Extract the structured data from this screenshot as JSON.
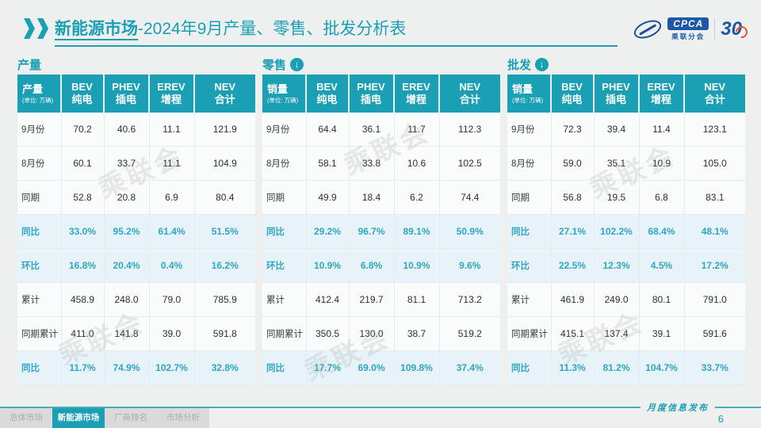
{
  "header": {
    "title_strong": "新能源市场",
    "title_rest": "-2024年9月产量、零售、批发分析表",
    "logo": {
      "cpca": "CPCA",
      "org": "乘联分会",
      "anniversary": "30"
    }
  },
  "watermark": "乘联会",
  "column_widths": [
    "18.5%",
    "18%",
    "19%",
    "19%",
    "25.5%"
  ],
  "tables": [
    {
      "section_title": "产量",
      "arrow": false,
      "corner_label": "产量",
      "corner_unit": "(单位: 万辆)",
      "columns": [
        [
          "BEV",
          "纯电"
        ],
        [
          "PHEV",
          "插电"
        ],
        [
          "EREV",
          "增程"
        ],
        [
          "NEV",
          "合计"
        ]
      ],
      "rows": [
        {
          "label": "9月份",
          "values": [
            "70.2",
            "40.6",
            "11.1",
            "121.9"
          ],
          "highlight": false
        },
        {
          "label": "8月份",
          "values": [
            "60.1",
            "33.7",
            "11.1",
            "104.9"
          ],
          "highlight": false
        },
        {
          "label": "同期",
          "values": [
            "52.8",
            "20.8",
            "6.9",
            "80.4"
          ],
          "highlight": false
        },
        {
          "label": "同比",
          "values": [
            "33.0%",
            "95.2%",
            "61.4%",
            "51.5%"
          ],
          "highlight": true
        },
        {
          "label": "环比",
          "values": [
            "16.8%",
            "20.4%",
            "0.4%",
            "16.2%"
          ],
          "highlight": true
        },
        {
          "label": "累计",
          "values": [
            "458.9",
            "248.0",
            "79.0",
            "785.9"
          ],
          "highlight": false
        },
        {
          "label": "同期累计",
          "values": [
            "411.0",
            "141.8",
            "39.0",
            "591.8"
          ],
          "highlight": false
        },
        {
          "label": "同比",
          "values": [
            "11.7%",
            "74.9%",
            "102.7%",
            "32.8%"
          ],
          "highlight": true
        }
      ]
    },
    {
      "section_title": "零售",
      "arrow": true,
      "corner_label": "销量",
      "corner_unit": "(单位: 万辆)",
      "columns": [
        [
          "BEV",
          "纯电"
        ],
        [
          "PHEV",
          "插电"
        ],
        [
          "EREV",
          "增程"
        ],
        [
          "NEV",
          "合计"
        ]
      ],
      "rows": [
        {
          "label": "9月份",
          "values": [
            "64.4",
            "36.1",
            "11.7",
            "112.3"
          ],
          "highlight": false
        },
        {
          "label": "8月份",
          "values": [
            "58.1",
            "33.8",
            "10.6",
            "102.5"
          ],
          "highlight": false
        },
        {
          "label": "同期",
          "values": [
            "49.9",
            "18.4",
            "6.2",
            "74.4"
          ],
          "highlight": false
        },
        {
          "label": "同比",
          "values": [
            "29.2%",
            "96.7%",
            "89.1%",
            "50.9%"
          ],
          "highlight": true
        },
        {
          "label": "环比",
          "values": [
            "10.9%",
            "6.8%",
            "10.9%",
            "9.6%"
          ],
          "highlight": true
        },
        {
          "label": "累计",
          "values": [
            "412.4",
            "219.7",
            "81.1",
            "713.2"
          ],
          "highlight": false
        },
        {
          "label": "同期累计",
          "values": [
            "350.5",
            "130.0",
            "38.7",
            "519.2"
          ],
          "highlight": false
        },
        {
          "label": "同比",
          "values": [
            "17.7%",
            "69.0%",
            "109.8%",
            "37.4%"
          ],
          "highlight": true
        }
      ]
    },
    {
      "section_title": "批发",
      "arrow": true,
      "corner_label": "销量",
      "corner_unit": "(单位: 万辆)",
      "columns": [
        [
          "BEV",
          "纯电"
        ],
        [
          "PHEV",
          "插电"
        ],
        [
          "EREV",
          "增程"
        ],
        [
          "NEV",
          "合计"
        ]
      ],
      "rows": [
        {
          "label": "9月份",
          "values": [
            "72.3",
            "39.4",
            "11.4",
            "123.1"
          ],
          "highlight": false
        },
        {
          "label": "8月份",
          "values": [
            "59.0",
            "35.1",
            "10.9",
            "105.0"
          ],
          "highlight": false
        },
        {
          "label": "同期",
          "values": [
            "56.8",
            "19.5",
            "6.8",
            "83.1"
          ],
          "highlight": false
        },
        {
          "label": "同比",
          "values": [
            "27.1%",
            "102.2%",
            "68.4%",
            "48.1%"
          ],
          "highlight": true
        },
        {
          "label": "环比",
          "values": [
            "22.5%",
            "12.3%",
            "4.5%",
            "17.2%"
          ],
          "highlight": true
        },
        {
          "label": "累计",
          "values": [
            "461.9",
            "249.0",
            "80.1",
            "791.0"
          ],
          "highlight": false
        },
        {
          "label": "同期累计",
          "values": [
            "415.1",
            "137.4",
            "39.1",
            "591.6"
          ],
          "highlight": false
        },
        {
          "label": "同比",
          "values": [
            "11.3%",
            "81.2%",
            "104.7%",
            "33.7%"
          ],
          "highlight": true
        }
      ]
    }
  ],
  "footer": {
    "tabs": [
      {
        "label": "总体市场",
        "active": false
      },
      {
        "label": "新能源市场",
        "active": true
      },
      {
        "label": "厂商排名",
        "active": false
      },
      {
        "label": "市场分析",
        "active": false
      }
    ],
    "release_label": "月度信息发布",
    "page_number": "6"
  },
  "colors": {
    "teal": "#1A9FB4",
    "highlight_bg": "#E8F3F9",
    "highlight_text": "#2EA6C6",
    "logo_blue": "#1D57A8"
  }
}
